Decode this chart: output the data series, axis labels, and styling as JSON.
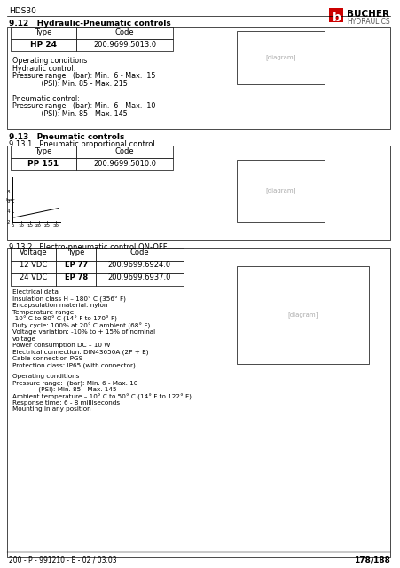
{
  "bg_color": "#ffffff",
  "header_text": "HDS30",
  "logo_text": "BUCHER\nHYDRAULICS",
  "footer_left": "200 - P - 991210 - E - 02 / 03.03",
  "footer_right": "178/188",
  "section_912_title": "9.12   Hydraulic-Pneumatic controls",
  "section_912_type": "HP 24",
  "section_912_code": "200.9699.5013.0",
  "section_912_ops": "Operating conditions\nHydraulic control:\nPressure range:  (bar): Min.  6 - Max.  15\n             (PSI): Min. 85 - Max. 215\n\nPneumatic control:\nPressure range:  (bar): Min.  6 - Max.  10\n             (PSI): Min. 85 - Max. 145",
  "section_913_title": "9.13   Pneumatic controls",
  "section_9131_title": "9.13.1   Pneumatic proportional control",
  "section_9131_type": "PP 151",
  "section_9131_code": "200.9699.5010.0",
  "section_9132_title": "9.13.2   Electro-pneumatic control ON-OFF",
  "section_9132_col1": "Voltage",
  "section_9132_col2": "Type",
  "section_9132_col3": "Code",
  "section_9132_rows": [
    [
      "12 VDC",
      "EP 77",
      "200.9699.6924.0"
    ],
    [
      "24 VDC",
      "EP 78",
      "200.9699.6937.0"
    ]
  ],
  "section_9132_electrical": "Electrical data\nInsulation class H – 180° C (356° F)\nEncapsulation material: nylon\nTemperature range:\n-10° C to 80° C (14° F to 170° F)\nDuty cycle: 100% at 20° C ambient (68° F)\nVoltage variation: -10% to + 15% of nominal\nvoltage\nPower consumption DC – 10 W\nElectrical connection: DIN43650A (2P + E)\nCable connection PG9\nProtection class: IP65 (with connector)",
  "section_9132_ops": "Operating conditions\nPressure range:  (bar): Min. 6 - Max. 10\n             (PSI): Min. 85 - Max. 145\nAmbient temperature – 10° C to 50° C (14° F to 122° F)\nResponse time: 6 - 8 milliseconds\nMounting in any position"
}
